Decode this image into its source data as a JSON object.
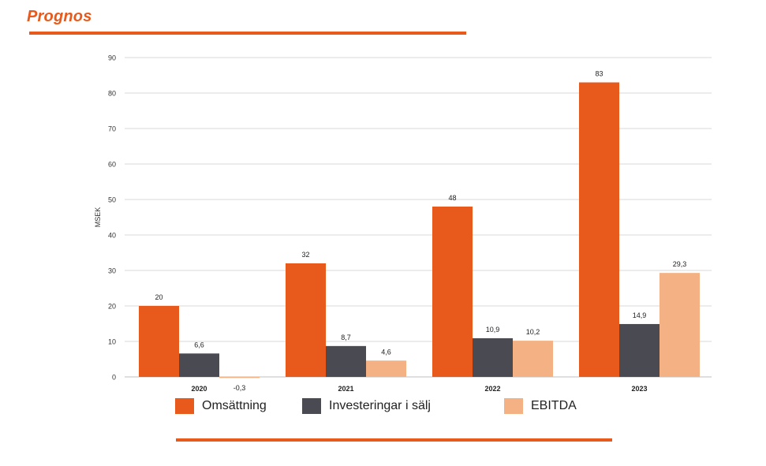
{
  "header": {
    "title": "Prognos"
  },
  "colors": {
    "accent": "#e85a1c",
    "grid": "#d9d9d9",
    "axis": "#bfbfbf",
    "text": "#333333"
  },
  "legend": [
    {
      "label": "Omsättning",
      "color": "#e85a1c"
    },
    {
      "label": "Investeringar i sälj",
      "color": "#4a4a52"
    },
    {
      "label": "EBITDA",
      "color": "#f4b183"
    }
  ],
  "chart_data": {
    "type": "bar",
    "title": "",
    "xlabel": "",
    "ylabel": "MSEK",
    "ylim": [
      0,
      90
    ],
    "yticks": [
      "0",
      "10",
      "20",
      "30",
      "40",
      "50",
      "60",
      "70",
      "80",
      "90"
    ],
    "grid": true,
    "legend_position": "bottom",
    "categories": [
      "2020",
      "2021",
      "2022",
      "2023"
    ],
    "series": [
      {
        "name": "Omsättning",
        "color": "#e85a1c",
        "values": [
          20,
          32,
          48,
          83
        ],
        "labels": [
          "20",
          "32",
          "48",
          "83"
        ]
      },
      {
        "name": "Investeringar i sälj",
        "color": "#4a4a52",
        "values": [
          6.6,
          8.7,
          10.9,
          14.9
        ],
        "labels": [
          "6,6",
          "8,7",
          "10,9",
          "14,9"
        ]
      },
      {
        "name": "EBITDA",
        "color": "#f4b183",
        "values": [
          -0.3,
          4.6,
          10.2,
          29.3
        ],
        "labels": [
          "-0,3",
          "4,6",
          "10,2",
          "29,3"
        ]
      }
    ]
  }
}
